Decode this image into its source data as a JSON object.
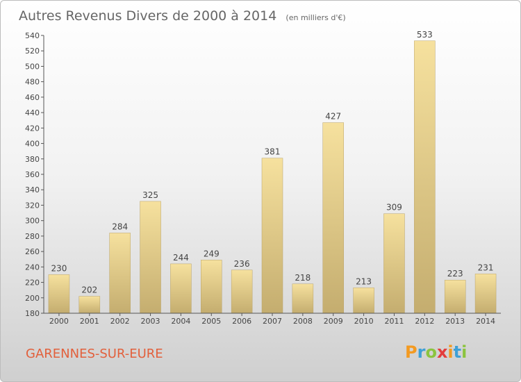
{
  "chart_data": {
    "type": "bar",
    "title": "Autres Revenus Divers de 2000 à 2014",
    "subtitle": "(en milliers d'€)",
    "categories": [
      "2000",
      "2001",
      "2002",
      "2003",
      "2004",
      "2005",
      "2006",
      "2007",
      "2008",
      "2009",
      "2010",
      "2011",
      "2012",
      "2013",
      "2014"
    ],
    "values": [
      230,
      202,
      284,
      325,
      244,
      249,
      236,
      381,
      218,
      427,
      213,
      309,
      533,
      223,
      231
    ],
    "ylim": [
      180,
      540
    ],
    "yticks": [
      180,
      200,
      220,
      240,
      260,
      280,
      300,
      320,
      340,
      360,
      380,
      400,
      420,
      440,
      460,
      480,
      500,
      520,
      540
    ],
    "grid": false,
    "colors": {
      "bar_light": "#f6e19e",
      "bar_dark": "#c4ad6f"
    }
  },
  "footer": {
    "commune": "GARENNES-SUR-EURE",
    "logo_letters": [
      "P",
      "r",
      "o",
      "x",
      "i",
      "t",
      "i"
    ],
    "logo_colors": [
      "#f39a21",
      "#3ea0d6",
      "#8bc43f",
      "#e33d3d",
      "#f39a21",
      "#3ea0d6",
      "#8bc43f"
    ]
  }
}
